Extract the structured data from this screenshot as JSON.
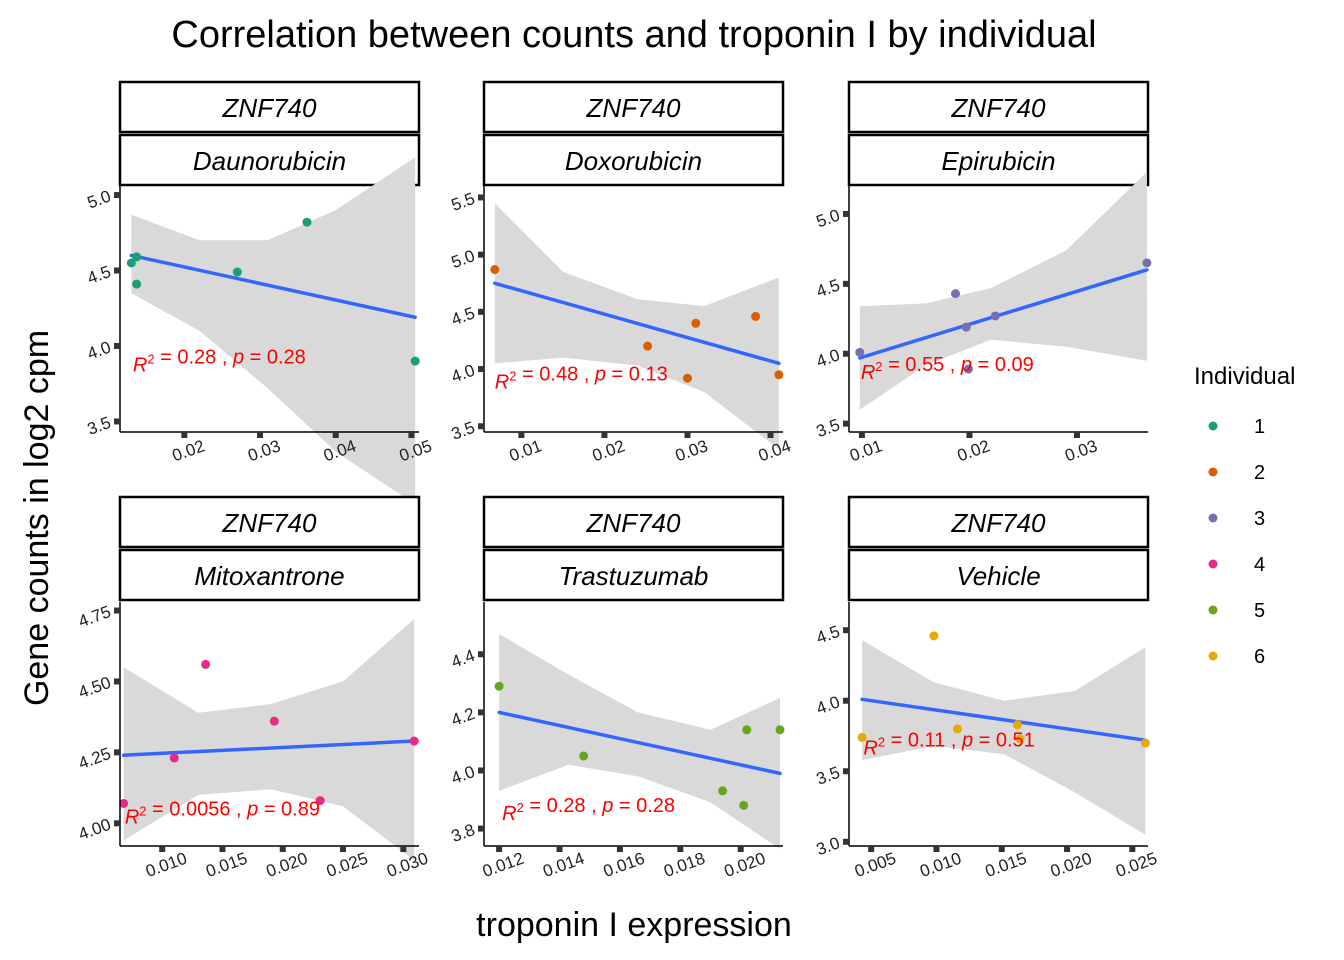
{
  "chart_data": {
    "type": "scatter",
    "title": "Correlation between counts and troponin I by individual",
    "xlabel": "troponin I expression",
    "ylabel": "Gene counts in log2 cpm",
    "grid": false,
    "legend": {
      "title": "Individual",
      "placement": "right",
      "items": [
        {
          "label": "1",
          "color": "#1b9e77"
        },
        {
          "label": "2",
          "color": "#d95f02"
        },
        {
          "label": "3",
          "color": "#7570b3"
        },
        {
          "label": "4",
          "color": "#e7298a"
        },
        {
          "label": "5",
          "color": "#66a61e"
        },
        {
          "label": "6",
          "color": "#e6ab02"
        }
      ]
    },
    "fit_line_color": "#3366ff",
    "ci_band_color": "#d9d9d9",
    "annotation_color": "#ff0000",
    "panels": [
      {
        "gene": "ZNF740",
        "treatment": "Daunorubicin",
        "individual": "1",
        "xlim": [
          0.0115,
          0.051
        ],
        "ylim": [
          3.43,
          5.06
        ],
        "xticks": [
          "0.02",
          "0.03",
          "0.04",
          "0.05"
        ],
        "yticks": [
          "3.5",
          "4.0",
          "4.5",
          "5.0"
        ],
        "points": [
          [
            0.013,
            4.55
          ],
          [
            0.0137,
            4.59
          ],
          [
            0.0137,
            4.41
          ],
          [
            0.027,
            4.49
          ],
          [
            0.0362,
            4.82
          ],
          [
            0.0505,
            3.9
          ]
        ],
        "fit": [
          [
            0.013,
            4.6
          ],
          [
            0.0505,
            4.19
          ]
        ],
        "ci": {
          "x": [
            0.013,
            0.022,
            0.031,
            0.04,
            0.0505
          ],
          "lower": [
            4.35,
            4.1,
            3.72,
            3.3,
            2.95
          ],
          "upper": [
            4.87,
            4.7,
            4.7,
            4.9,
            5.25
          ]
        },
        "r2": "0.28",
        "p": "0.28",
        "label_pos": [
          0.0132,
          3.83
        ]
      },
      {
        "gene": "ZNF740",
        "treatment": "Doxorubicin",
        "individual": "2",
        "xlim": [
          0.0055,
          0.0415
        ],
        "ylim": [
          3.45,
          5.6
        ],
        "xticks": [
          "0.01",
          "0.02",
          "0.03",
          "0.04"
        ],
        "yticks": [
          "3.5",
          "4.0",
          "4.5",
          "5.0",
          "5.5"
        ],
        "points": [
          [
            0.0068,
            4.87
          ],
          [
            0.0252,
            4.2
          ],
          [
            0.03,
            3.92
          ],
          [
            0.031,
            4.4
          ],
          [
            0.0382,
            4.46
          ],
          [
            0.041,
            3.95
          ]
        ],
        "fit": [
          [
            0.0068,
            4.75
          ],
          [
            0.041,
            4.05
          ]
        ],
        "ci": {
          "x": [
            0.0068,
            0.015,
            0.024,
            0.032,
            0.041
          ],
          "lower": [
            4.05,
            4.1,
            4.03,
            3.8,
            3.3
          ],
          "upper": [
            5.45,
            4.85,
            4.61,
            4.55,
            4.8
          ]
        },
        "r2": "0.48",
        "p": "0.13",
        "label_pos": [
          0.0068,
          3.83
        ]
      },
      {
        "gene": "ZNF740",
        "treatment": "Epirubicin",
        "individual": "3",
        "xlim": [
          0.0088,
          0.0366
        ],
        "ylim": [
          3.44,
          5.2
        ],
        "xticks": [
          "0.01",
          "0.02",
          "0.03"
        ],
        "yticks": [
          "3.5",
          "4.0",
          "4.5",
          "5.0"
        ],
        "points": [
          [
            0.0098,
            4.01
          ],
          [
            0.0187,
            4.43
          ],
          [
            0.0197,
            4.19
          ],
          [
            0.0199,
            3.89
          ],
          [
            0.0224,
            4.27
          ],
          [
            0.0365,
            4.65
          ]
        ],
        "fit": [
          [
            0.0098,
            3.97
          ],
          [
            0.0365,
            4.6
          ]
        ],
        "ci": {
          "x": [
            0.0098,
            0.016,
            0.022,
            0.029,
            0.0365
          ],
          "lower": [
            3.6,
            3.92,
            4.1,
            4.05,
            3.95
          ],
          "upper": [
            4.34,
            4.36,
            4.47,
            4.74,
            5.3
          ]
        },
        "r2": "0.55",
        "p": "0.09",
        "label_pos": [
          0.0099,
          3.82
        ]
      },
      {
        "gene": "ZNF740",
        "treatment": "Mitoxantrone",
        "individual": "4",
        "xlim": [
          0.0065,
          0.0313
        ],
        "ylim": [
          3.92,
          4.78
        ],
        "xticks": [
          "0.010",
          "0.015",
          "0.020",
          "0.025",
          "0.030"
        ],
        "yticks": [
          "4.00",
          "4.25",
          "4.50",
          "4.75"
        ],
        "points": [
          [
            0.0068,
            4.07
          ],
          [
            0.011,
            4.23
          ],
          [
            0.0136,
            4.56
          ],
          [
            0.0193,
            4.36
          ],
          [
            0.0231,
            4.08
          ],
          [
            0.0309,
            4.29
          ]
        ],
        "fit": [
          [
            0.0068,
            4.24
          ],
          [
            0.0309,
            4.29
          ]
        ],
        "ci": {
          "x": [
            0.0068,
            0.013,
            0.019,
            0.025,
            0.0309
          ],
          "lower": [
            3.94,
            4.1,
            4.12,
            4.06,
            3.87
          ],
          "upper": [
            4.55,
            4.39,
            4.42,
            4.5,
            4.72
          ]
        },
        "r2": "0.0056",
        "p": "0.89",
        "label_pos": [
          0.0069,
          4.0
        ]
      },
      {
        "gene": "ZNF740",
        "treatment": "Trastuzumab",
        "individual": "5",
        "xlim": [
          0.0115,
          0.0214
        ],
        "ylim": [
          3.74,
          4.58
        ],
        "xticks": [
          "0.012",
          "0.014",
          "0.016",
          "0.018",
          "0.020"
        ],
        "yticks": [
          "3.8",
          "4.0",
          "4.2",
          "4.4"
        ],
        "points": [
          [
            0.012,
            4.29
          ],
          [
            0.0148,
            4.05
          ],
          [
            0.0194,
            3.93
          ],
          [
            0.0201,
            3.88
          ],
          [
            0.0202,
            4.14
          ],
          [
            0.0213,
            4.14
          ]
        ],
        "fit": [
          [
            0.012,
            4.2
          ],
          [
            0.0213,
            3.99
          ]
        ],
        "ci": {
          "x": [
            0.012,
            0.0143,
            0.0166,
            0.019,
            0.0213
          ],
          "lower": [
            3.93,
            4.02,
            3.98,
            3.89,
            3.73
          ],
          "upper": [
            4.47,
            4.33,
            4.2,
            4.14,
            4.25
          ]
        },
        "r2": "0.28",
        "p": "0.28",
        "label_pos": [
          0.0121,
          3.83
        ]
      },
      {
        "gene": "ZNF740",
        "treatment": "Vehicle",
        "individual": "6",
        "xlim": [
          0.0033,
          0.0262
        ],
        "ylim": [
          2.97,
          4.7
        ],
        "xticks": [
          "0.005",
          "0.010",
          "0.015",
          "0.020",
          "0.025"
        ],
        "yticks": [
          "3.0",
          "3.5",
          "4.0",
          "4.5"
        ],
        "points": [
          [
            0.0043,
            3.74
          ],
          [
            0.0098,
            4.46
          ],
          [
            0.0116,
            3.8
          ],
          [
            0.0162,
            3.83
          ],
          [
            0.0164,
            3.73
          ],
          [
            0.026,
            3.7
          ]
        ],
        "fit": [
          [
            0.0043,
            4.01
          ],
          [
            0.026,
            3.72
          ]
        ],
        "ci": {
          "x": [
            0.0043,
            0.0098,
            0.0152,
            0.0206,
            0.026
          ],
          "lower": [
            3.58,
            3.68,
            3.62,
            3.35,
            3.05
          ],
          "upper": [
            4.43,
            4.13,
            4.0,
            4.07,
            4.38
          ]
        },
        "r2": "0.11",
        "p": "0.51",
        "label_pos": [
          0.0044,
          3.62
        ]
      }
    ]
  }
}
